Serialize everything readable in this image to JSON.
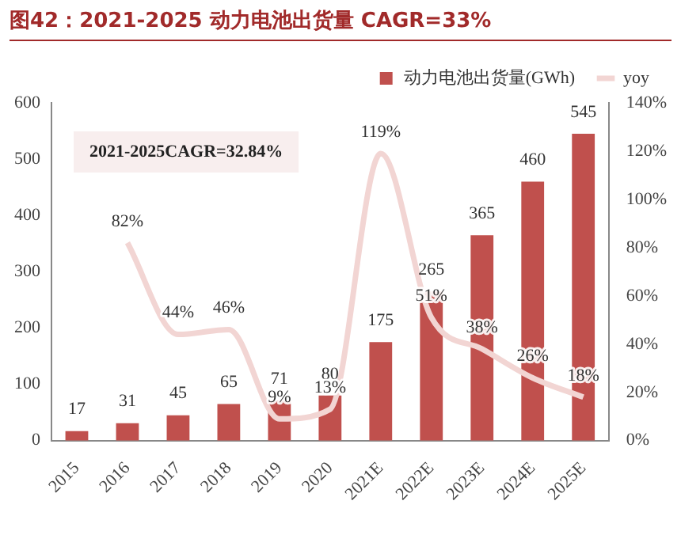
{
  "chart_data": {
    "type": "bar",
    "title": "图42：2021-2025 动力电池出货量 CAGR=33%",
    "categories": [
      "2015",
      "2016",
      "2017",
      "2018",
      "2019",
      "2020",
      "2021E",
      "2022E",
      "2023E",
      "2024E",
      "2025E"
    ],
    "series": [
      {
        "name": "动力电池出货量(GWh)",
        "color": "#c0504d",
        "values": [
          17,
          31,
          45,
          65,
          71,
          80,
          175,
          265,
          365,
          460,
          545
        ],
        "value_labels": [
          "17",
          "31",
          "45",
          "65",
          "71",
          "80",
          "175",
          "265",
          "365",
          "460",
          "545"
        ]
      },
      {
        "name": "yoy",
        "type": "line",
        "axis": "y2",
        "color": "#f2d5d3",
        "values": [
          null,
          82,
          44,
          46,
          9,
          13,
          119,
          51,
          38,
          26,
          18
        ],
        "value_labels": [
          null,
          "82%",
          "44%",
          "46%",
          "9%",
          "13%",
          "119%",
          "51%",
          "38%",
          "26%",
          "18%"
        ]
      }
    ],
    "ylim": [
      0,
      600
    ],
    "yticks": [
      0,
      100,
      200,
      300,
      400,
      500,
      600
    ],
    "y2lim": [
      0,
      140
    ],
    "y2ticks": [
      {
        "value": 0,
        "label": "0%"
      },
      {
        "value": 20,
        "label": "20%"
      },
      {
        "value": 40,
        "label": "40%"
      },
      {
        "value": 60,
        "label": "60%"
      },
      {
        "value": 80,
        "label": "80%"
      },
      {
        "value": 100,
        "label": "100%"
      },
      {
        "value": 120,
        "label": "120%"
      },
      {
        "value": 140,
        "label": "140%"
      }
    ],
    "annotations": [
      "2021-2025CAGR=32.84%"
    ],
    "legend": "top",
    "grid": false,
    "marker": "none",
    "line_style": "solid"
  }
}
